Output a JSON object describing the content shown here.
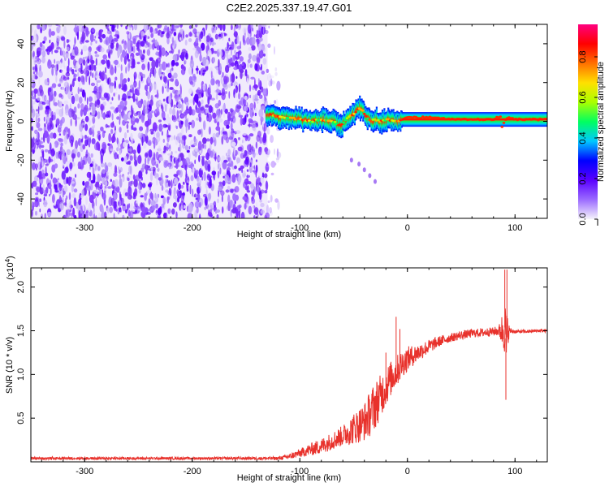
{
  "title": "C2E2.2025.337.19.47.G01",
  "chart_data": [
    {
      "type": "heatmap",
      "title": "C2E2.2025.337.19.47.G01",
      "xlabel": "Height of straight line (km)",
      "ylabel": "Frequency (Hz)",
      "xlim": [
        -350,
        130
      ],
      "ylim": [
        -50,
        50
      ],
      "xticks": [
        -300,
        -200,
        -100,
        0,
        100
      ],
      "xtick_labels": [
        "-300",
        "-200",
        "-100",
        "0",
        "100"
      ],
      "yticks": [
        -40,
        -20,
        0,
        20,
        40
      ],
      "ytick_labels": [
        "-40",
        "-20",
        "0",
        "20",
        "40"
      ],
      "colorbar": {
        "label": "Normalized spectral amplitude",
        "range": [
          0,
          0.96
        ],
        "ticks": [
          0.0,
          0.2,
          0.4,
          0.6,
          0.8
        ],
        "tick_labels": [
          "0.0",
          "0.2",
          "0.4",
          "0.6",
          "0.8"
        ],
        "colors": [
          "#f6f4fb",
          "#9b6bff",
          "#5a00ff",
          "#0000ff",
          "#00c8ff",
          "#00ff60",
          "#aaff00",
          "#ffe000",
          "#ff7000",
          "#ff0000",
          "#ff0080"
        ]
      },
      "noise_region_x": [
        -350,
        -130
      ],
      "signal_track": {
        "x": [
          -132,
          -125,
          -118,
          -110,
          -100,
          -90,
          -80,
          -70,
          -62,
          -55,
          -50,
          -45,
          -42,
          -38,
          -34,
          -30,
          -25,
          -18,
          -10,
          -5,
          0,
          10,
          25,
          40,
          60,
          80,
          87,
          88,
          90,
          92,
          100,
          115,
          130
        ],
        "freq": [
          4,
          3,
          2,
          2,
          1,
          0,
          1,
          0,
          -2,
          2,
          4,
          7,
          6,
          2,
          0,
          1,
          0,
          1,
          0,
          1,
          2,
          2,
          2,
          1,
          1,
          1,
          3,
          -3,
          0,
          2,
          1,
          1,
          1
        ]
      },
      "faint_branch": {
        "x": [
          -52,
          -45,
          -40,
          -35,
          -30
        ],
        "freq": [
          -20,
          -22,
          -25,
          -28,
          -31
        ]
      }
    },
    {
      "type": "line",
      "xlabel": "Height of straight line (km)",
      "ylabel": "SNR (10 * v/v)",
      "y_multiplier": "(x10^4)",
      "xlim": [
        -350,
        130
      ],
      "ylim": [
        0,
        2.22
      ],
      "xticks": [
        -300,
        -200,
        -100,
        0,
        100
      ],
      "xtick_labels": [
        "-300",
        "-200",
        "-100",
        "0",
        "100"
      ],
      "yticks": [
        0.5,
        1.0,
        1.5,
        2.0
      ],
      "ytick_labels": [
        "0.5",
        "1.0",
        "1.5",
        "2.0"
      ],
      "series": [
        {
          "name": "SNR",
          "color": "#e8322c",
          "x": [
            -350,
            -300,
            -250,
            -200,
            -150,
            -120,
            -110,
            -100,
            -90,
            -80,
            -70,
            -60,
            -50,
            -40,
            -35,
            -30,
            -25,
            -20,
            -15,
            -10,
            -5,
            0,
            10,
            20,
            30,
            40,
            50,
            60,
            70,
            80,
            85,
            88,
            90,
            92,
            93,
            95,
            100,
            110,
            120,
            130
          ],
          "y": [
            0.04,
            0.04,
            0.04,
            0.04,
            0.04,
            0.04,
            0.06,
            0.1,
            0.14,
            0.18,
            0.24,
            0.3,
            0.38,
            0.46,
            0.55,
            0.65,
            0.75,
            0.86,
            0.96,
            1.04,
            1.12,
            1.18,
            1.25,
            1.32,
            1.38,
            1.42,
            1.45,
            1.47,
            1.48,
            1.49,
            1.5,
            1.5,
            1.6,
            1.35,
            1.5,
            1.5,
            1.49,
            1.49,
            1.5,
            1.5
          ],
          "noise": [
            0.015,
            0.015,
            0.015,
            0.015,
            0.015,
            0.02,
            0.03,
            0.05,
            0.07,
            0.09,
            0.1,
            0.12,
            0.18,
            0.22,
            0.26,
            0.28,
            0.25,
            0.22,
            0.2,
            0.18,
            0.16,
            0.14,
            0.1,
            0.08,
            0.06,
            0.05,
            0.05,
            0.05,
            0.05,
            0.05,
            0.06,
            0.2,
            0.35,
            0.35,
            0.2,
            0.04,
            0.02,
            0.02,
            0.02,
            0.02
          ],
          "spikes": [
            {
              "x": -10.5,
              "y": 1.66
            },
            {
              "x": -7,
              "y": 1.52
            },
            {
              "x": -20,
              "y": 1.25
            },
            {
              "x": 90.5,
              "y": 2.2
            },
            {
              "x": 92.5,
              "y": 2.2
            },
            {
              "x": 91.5,
              "y": 0.71
            }
          ]
        }
      ]
    }
  ]
}
